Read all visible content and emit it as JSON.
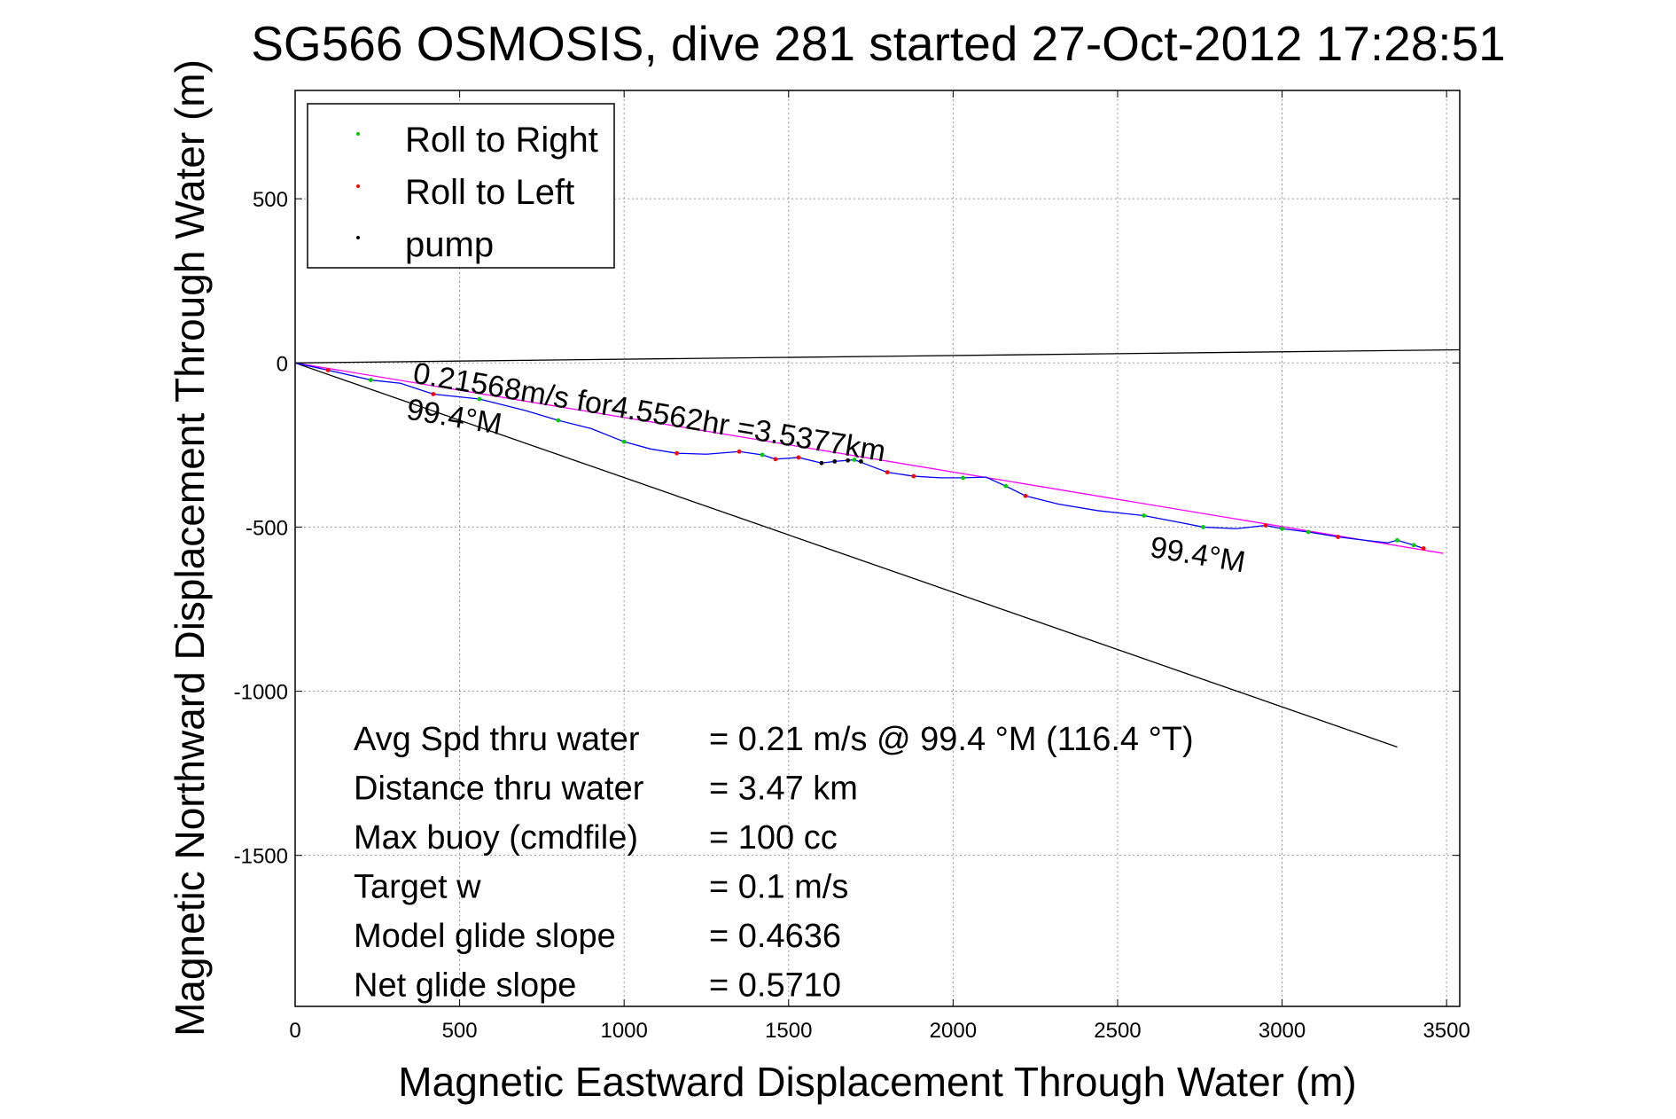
{
  "chart_data": {
    "type": "line",
    "title": "SG566 OSMOSIS, dive 281 started 27-Oct-2012 17:28:51",
    "xlabel": "Magnetic Eastward Displacement Through Water (m)",
    "ylabel": "Magnetic Northward Displacement Through Water (m)",
    "xlim": [
      0,
      3540
    ],
    "ylim": [
      -1960,
      830
    ],
    "x_ticks": [
      0,
      500,
      1000,
      1500,
      2000,
      2500,
      3000,
      3500
    ],
    "y_ticks": [
      -1500,
      -1000,
      -500,
      0,
      500
    ],
    "x_tick_labels": [
      "0",
      "500",
      "1000",
      "1500",
      "2000",
      "2500",
      "3000",
      "3500"
    ],
    "y_tick_labels": [
      "-1500",
      "-1000",
      "-500",
      "0",
      "500"
    ],
    "grid": true,
    "legend_position": "top-left",
    "legend": [
      {
        "label": "Roll to Right",
        "color": "#00cc00"
      },
      {
        "label": "Roll to Left",
        "color": "#ff0000"
      },
      {
        "label": "pump",
        "color": "#000000"
      }
    ],
    "track": {
      "color": "#0000ff",
      "x": [
        0,
        100,
        230,
        320,
        420,
        560,
        700,
        800,
        900,
        1000,
        1080,
        1160,
        1250,
        1350,
        1420,
        1460,
        1530,
        1600,
        1640,
        1700,
        1760,
        1800,
        1880,
        1960,
        2030,
        2100,
        2160,
        2220,
        2320,
        2440,
        2580,
        2700,
        2760,
        2860,
        2950,
        3000,
        3080,
        3170,
        3250,
        3320,
        3350,
        3400,
        3430
      ],
      "y": [
        0,
        -22,
        -52,
        -62,
        -95,
        -110,
        -145,
        -175,
        -200,
        -240,
        -262,
        -275,
        -278,
        -270,
        -280,
        -293,
        -288,
        -305,
        -300,
        -295,
        -318,
        -333,
        -345,
        -350,
        -350,
        -348,
        -375,
        -405,
        -430,
        -450,
        -465,
        -488,
        -500,
        -505,
        -495,
        -505,
        -515,
        -530,
        -540,
        -548,
        -540,
        -555,
        -565
      ]
    },
    "markers": {
      "roll_right": {
        "color": "#00cc00",
        "x": [
          230,
          560,
          800,
          1000,
          1420,
          1700,
          2030,
          2160,
          2580,
          2760,
          3000,
          3080,
          3350,
          3400
        ],
        "y": [
          -52,
          -110,
          -175,
          -240,
          -280,
          -295,
          -350,
          -375,
          -465,
          -500,
          -505,
          -515,
          -540,
          -555
        ]
      },
      "roll_left": {
        "color": "#ff0000",
        "x": [
          100,
          420,
          1160,
          1350,
          1460,
          1530,
          1800,
          1880,
          2220,
          2950,
          3170,
          3430
        ],
        "y": [
          -22,
          -95,
          -275,
          -270,
          -293,
          -288,
          -333,
          -345,
          -405,
          -495,
          -530,
          -565
        ]
      },
      "pump": {
        "color": "#000000",
        "x": [
          1600,
          1640,
          1680,
          1720
        ],
        "y": [
          -305,
          -300,
          -297,
          -300
        ]
      }
    },
    "lines": [
      {
        "name": "heading",
        "color": "#000000",
        "x": [
          0,
          3350
        ],
        "y": [
          0,
          -1170
        ]
      },
      {
        "name": "current",
        "color": "#000000",
        "x": [
          0,
          3540
        ],
        "y": [
          0,
          40
        ]
      },
      {
        "name": "straight-course",
        "color": "#ff00ff",
        "x": [
          0,
          3490
        ],
        "y": [
          0,
          -580
        ]
      }
    ],
    "annotations": [
      {
        "text": "0.21568m/s for4.5562hr =3.5377km",
        "x": 355,
        "y": -60,
        "rotation_deg": 9.5
      },
      {
        "text": "99.4°M",
        "x": 335,
        "y": -170,
        "rotation_deg": 9.5
      },
      {
        "text": "99.4°M",
        "x": 2595,
        "y": -590,
        "rotation_deg": 9.5
      }
    ],
    "stats": [
      {
        "label": "Avg Spd thru water",
        "value": "=  0.21 m/s @  99.4 °M (116.4 °T)"
      },
      {
        "label": "Distance thru water",
        "value": "=  3.47 km"
      },
      {
        "label": "Max buoy (cmdfile)",
        "value": "= 100 cc"
      },
      {
        "label": "Target w",
        "value": "= 0.1 m/s"
      },
      {
        "label": "Model glide slope",
        "value": "= 0.4636"
      },
      {
        "label": "Net glide slope",
        "value": "= 0.5710"
      }
    ]
  }
}
